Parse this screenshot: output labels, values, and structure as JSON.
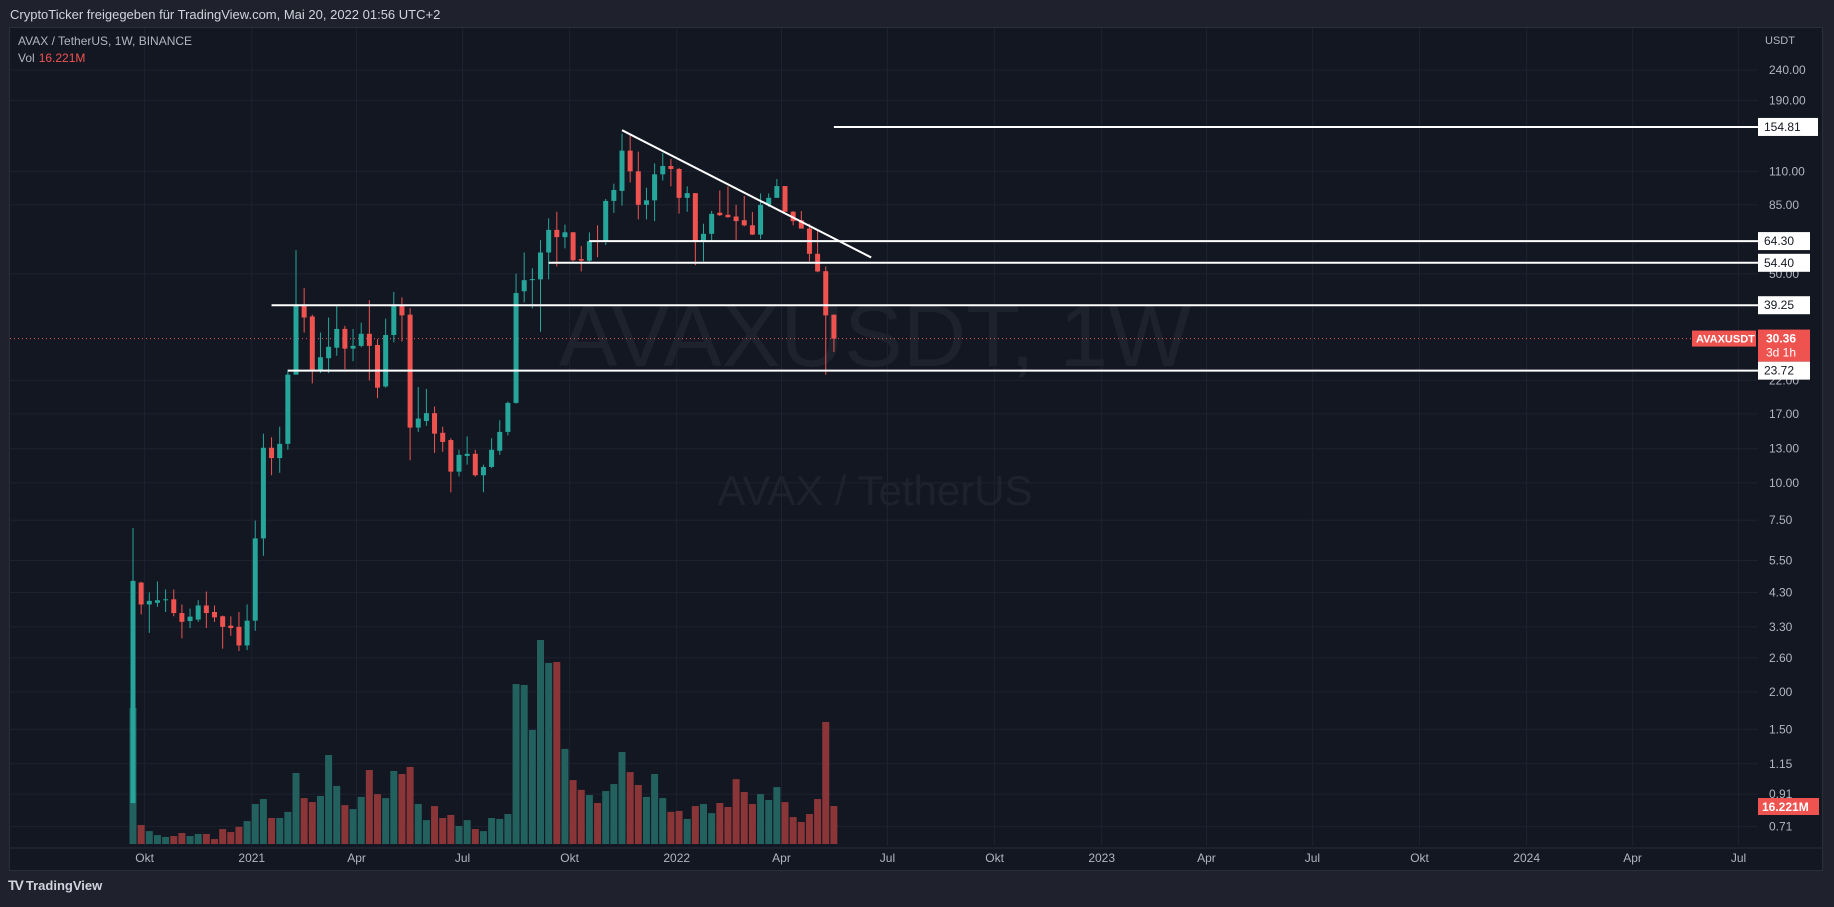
{
  "header": {
    "title": "CryptoTicker freigegeben für TradingView.com, Mai 20, 2022 01:56 UTC+2"
  },
  "legend": {
    "symbol_line": "AVAX / TetherUS, 1W, BINANCE",
    "vol_label": "Vol",
    "vol_value": "16.221M"
  },
  "watermark": {
    "line1": "AVAXUSDT, 1W",
    "line2": "AVAX / TetherUS"
  },
  "footer": {
    "logo_mark": "TV",
    "logo_text": "TradingView"
  },
  "colors": {
    "up": "#26a69a",
    "down": "#ef5350",
    "up_volume": "#22615e",
    "down_volume": "#8a3538",
    "background": "#131722",
    "lines": "#ffffff"
  },
  "chart_data": {
    "type": "candlestick",
    "symbol": "AVAXUSDT",
    "interval": "1W",
    "y_scale": "log",
    "y_unit": "USDT",
    "grid": true,
    "price_ticks": [
      {
        "value": 240,
        "label": "240.00"
      },
      {
        "value": 190,
        "label": "190.00"
      },
      {
        "value": 110,
        "label": "110.00"
      },
      {
        "value": 85,
        "label": "85.00"
      },
      {
        "value": 50,
        "label": "50.00"
      },
      {
        "value": 22,
        "label": "22.00"
      },
      {
        "value": 17,
        "label": "17.00"
      },
      {
        "value": 13,
        "label": "13.00"
      },
      {
        "value": 10,
        "label": "10.00"
      },
      {
        "value": 7.5,
        "label": "7.50"
      },
      {
        "value": 5.5,
        "label": "5.50"
      },
      {
        "value": 4.3,
        "label": "4.30"
      },
      {
        "value": 3.3,
        "label": "3.30"
      },
      {
        "value": 2.6,
        "label": "2.60"
      },
      {
        "value": 2.0,
        "label": "2.00"
      },
      {
        "value": 1.5,
        "label": "1.50"
      },
      {
        "value": 1.15,
        "label": "1.15"
      },
      {
        "value": 0.91,
        "label": "0.91"
      },
      {
        "value": 0.71,
        "label": "0.71"
      }
    ],
    "x_ticks": [
      {
        "date": "2020-10-01",
        "label": "Okt"
      },
      {
        "date": "2021-01-01",
        "label": "2021"
      },
      {
        "date": "2021-04-01",
        "label": "Apr"
      },
      {
        "date": "2021-07-01",
        "label": "Jul"
      },
      {
        "date": "2021-10-01",
        "label": "Okt"
      },
      {
        "date": "2022-01-01",
        "label": "2022"
      },
      {
        "date": "2022-04-01",
        "label": "Apr"
      },
      {
        "date": "2022-07-01",
        "label": "Jul"
      },
      {
        "date": "2022-10-01",
        "label": "Okt"
      },
      {
        "date": "2023-01-01",
        "label": "2023"
      },
      {
        "date": "2023-04-01",
        "label": "Apr"
      },
      {
        "date": "2023-07-01",
        "label": "Jul"
      },
      {
        "date": "2023-10-01",
        "label": "Okt"
      },
      {
        "date": "2024-01-01",
        "label": "2024"
      },
      {
        "date": "2024-04-01",
        "label": "Apr"
      },
      {
        "date": "2024-07-01",
        "label": "Jul"
      }
    ],
    "candle_fields": [
      "date",
      "open",
      "high",
      "low",
      "close",
      "volume_millions"
    ],
    "candles": [
      [
        "2020-09-21",
        0.85,
        7.06,
        0.85,
        4.7,
        58.1
      ],
      [
        "2020-09-28",
        4.64,
        4.67,
        3.63,
        3.92,
        8.1
      ],
      [
        "2020-10-05",
        3.92,
        4.3,
        3.15,
        4.03,
        5.5
      ],
      [
        "2020-10-12",
        3.97,
        4.68,
        3.85,
        4.05,
        3.8
      ],
      [
        "2020-10-19",
        4.05,
        4.4,
        3.7,
        4.08,
        3.0
      ],
      [
        "2020-10-26",
        4.08,
        4.4,
        3.58,
        3.67,
        3.4
      ],
      [
        "2020-11-02",
        3.67,
        3.92,
        3.02,
        3.43,
        4.7
      ],
      [
        "2020-11-09",
        3.45,
        3.8,
        3.27,
        3.57,
        3.4
      ],
      [
        "2020-11-16",
        3.49,
        4.05,
        3.43,
        3.89,
        4.3
      ],
      [
        "2020-11-23",
        3.89,
        4.33,
        3.27,
        3.67,
        4.3
      ],
      [
        "2020-11-30",
        3.7,
        3.89,
        3.43,
        3.55,
        2.1
      ],
      [
        "2020-12-07",
        3.58,
        3.6,
        2.79,
        3.3,
        6.4
      ],
      [
        "2020-12-14",
        3.33,
        3.58,
        3.08,
        3.27,
        5.1
      ],
      [
        "2020-12-21",
        3.3,
        3.7,
        2.74,
        2.86,
        7.3
      ],
      [
        "2020-12-28",
        2.86,
        3.92,
        2.76,
        3.46,
        9.8
      ],
      [
        "2021-01-04",
        3.46,
        7.48,
        3.2,
        6.52,
        17.1
      ],
      [
        "2021-01-11",
        6.52,
        14.6,
        5.7,
        13.1,
        19.2
      ],
      [
        "2021-01-18",
        13.1,
        14.2,
        10.6,
        12.1,
        11.1
      ],
      [
        "2021-01-25",
        12.1,
        15.4,
        10.8,
        13.5,
        11.1
      ],
      [
        "2021-02-01",
        13.5,
        23.9,
        12.9,
        23.0,
        13.7
      ],
      [
        "2021-02-08",
        23.0,
        60.0,
        23.0,
        39.0,
        30.3
      ],
      [
        "2021-02-15",
        39.0,
        44.8,
        31.8,
        35.7,
        19.6
      ],
      [
        "2021-02-22",
        36.0,
        36.5,
        21.5,
        23.7,
        17.9
      ],
      [
        "2021-03-01",
        23.7,
        31.8,
        23.3,
        26.3,
        20.5
      ],
      [
        "2021-03-08",
        26.1,
        35.7,
        23.3,
        28.5,
        38.0
      ],
      [
        "2021-03-15",
        28.3,
        39.0,
        26.6,
        32.7,
        24.8
      ],
      [
        "2021-03-22",
        32.7,
        33.5,
        24.0,
        28.1,
        16.6
      ],
      [
        "2021-03-29",
        28.1,
        32.7,
        25.5,
        28.7,
        14.9
      ],
      [
        "2021-04-05",
        28.7,
        34.3,
        28.4,
        31.5,
        20.1
      ],
      [
        "2021-04-12",
        31.5,
        40.8,
        22.0,
        28.7,
        31.6
      ],
      [
        "2021-04-19",
        28.9,
        30.2,
        19.2,
        20.8,
        21.3
      ],
      [
        "2021-04-26",
        21.0,
        35.4,
        20.8,
        31.2,
        19.6
      ],
      [
        "2021-05-03",
        31.2,
        43.5,
        29.5,
        39.0,
        31.2
      ],
      [
        "2021-05-10",
        39.0,
        41.7,
        29.7,
        36.3,
        29.9
      ],
      [
        "2021-05-17",
        36.5,
        38.4,
        11.9,
        15.3,
        32.9
      ],
      [
        "2021-05-24",
        15.3,
        20.9,
        14.8,
        16.4,
        17.1
      ],
      [
        "2021-05-31",
        16.1,
        20.6,
        15.5,
        17.1,
        10.2
      ],
      [
        "2021-06-07",
        17.1,
        18.0,
        12.6,
        14.6,
        16.2
      ],
      [
        "2021-06-14",
        14.7,
        15.4,
        12.7,
        13.7,
        11.1
      ],
      [
        "2021-06-21",
        13.9,
        14.1,
        9.3,
        10.9,
        12.4
      ],
      [
        "2021-06-28",
        10.9,
        12.9,
        10.5,
        12.4,
        7.7
      ],
      [
        "2021-07-05",
        12.3,
        14.3,
        11.5,
        12.5,
        10.2
      ],
      [
        "2021-07-12",
        12.5,
        12.9,
        10.5,
        10.6,
        6.4
      ],
      [
        "2021-07-19",
        10.6,
        11.5,
        9.3,
        11.3,
        5.5
      ],
      [
        "2021-07-26",
        11.3,
        14.1,
        11.2,
        12.9,
        11.1
      ],
      [
        "2021-08-02",
        12.8,
        16.2,
        12.4,
        14.8,
        10.7
      ],
      [
        "2021-08-09",
        14.8,
        18.7,
        14.4,
        18.5,
        12.8
      ],
      [
        "2021-08-16",
        18.5,
        50.0,
        18.4,
        43.1,
        68.3
      ],
      [
        "2021-08-23",
        43.7,
        58.9,
        40.1,
        47.6,
        67.9
      ],
      [
        "2021-08-30",
        47.6,
        52.2,
        38.3,
        48.0,
        48.7
      ],
      [
        "2021-09-06",
        47.9,
        64.8,
        32.0,
        58.9,
        87.1
      ],
      [
        "2021-09-13",
        58.9,
        76.6,
        47.9,
        70.1,
        77.3
      ],
      [
        "2021-09-20",
        70.1,
        80.6,
        52.9,
        66.3,
        77.7
      ],
      [
        "2021-09-27",
        66.3,
        73.0,
        60.8,
        68.8,
        40.6
      ],
      [
        "2021-10-04",
        68.8,
        69.0,
        55.0,
        55.5,
        27.3
      ],
      [
        "2021-10-11",
        56.0,
        61.9,
        50.9,
        55.3,
        23.1
      ],
      [
        "2021-10-18",
        55.3,
        68.8,
        54.6,
        64.3,
        20.9
      ],
      [
        "2021-10-25",
        64.5,
        72.6,
        56.8,
        63.9,
        17.5
      ],
      [
        "2021-11-01",
        64.3,
        88.9,
        62.4,
        87.6,
        22.6
      ],
      [
        "2021-11-08",
        87.6,
        100,
        79.9,
        95.3,
        25.6
      ],
      [
        "2021-11-15",
        94.6,
        147,
        84.5,
        129,
        39.3
      ],
      [
        "2021-11-22",
        129,
        146,
        101,
        110,
        30.7
      ],
      [
        "2021-11-29",
        110,
        128,
        76,
        85,
        25.2
      ],
      [
        "2021-12-06",
        85,
        97,
        76,
        88,
        20.1
      ],
      [
        "2021-12-13",
        88,
        117,
        75,
        107.5,
        29.9
      ],
      [
        "2021-12-20",
        107.5,
        126.8,
        102.5,
        114.6,
        19.6
      ],
      [
        "2021-12-27",
        114.6,
        121,
        98,
        112,
        13.7
      ],
      [
        "2022-01-03",
        112,
        113,
        79.5,
        89.7,
        14.1
      ],
      [
        "2022-01-10",
        89.7,
        98,
        80.6,
        93,
        10.7
      ],
      [
        "2022-01-17",
        93,
        93,
        53.4,
        64.6,
        16.2
      ],
      [
        "2022-01-24",
        64.6,
        73.5,
        55,
        68,
        17.1
      ],
      [
        "2022-01-31",
        68,
        81.1,
        64.6,
        79.3,
        13.2
      ],
      [
        "2022-02-07",
        80,
        95,
        78,
        78.5,
        17.5
      ],
      [
        "2022-02-14",
        78.7,
        98,
        77,
        77.3,
        15.8
      ],
      [
        "2022-02-21",
        77.7,
        85,
        64.6,
        75,
        27.7
      ],
      [
        "2022-02-28",
        75.5,
        91,
        72,
        72.6,
        22.2
      ],
      [
        "2022-03-07",
        72.6,
        80.5,
        67.4,
        67.6,
        17.1
      ],
      [
        "2022-03-14",
        67.6,
        92.8,
        65.3,
        85,
        21.3
      ],
      [
        "2022-03-21",
        85,
        92.8,
        83.6,
        89.7,
        18.8
      ],
      [
        "2022-03-28",
        89.7,
        103.7,
        89.7,
        98.2,
        24.3
      ],
      [
        "2022-04-04",
        98.2,
        98.2,
        80.6,
        80.6,
        17.9
      ],
      [
        "2022-04-11",
        80.6,
        81,
        72.6,
        75,
        11.5
      ],
      [
        "2022-04-18",
        75.5,
        81,
        70.8,
        70.8,
        9.4
      ],
      [
        "2022-04-25",
        70.8,
        73.5,
        55,
        58.3,
        12.8
      ],
      [
        "2022-05-02",
        58.3,
        69.5,
        50.6,
        50.9,
        19.2
      ],
      [
        "2022-05-09",
        51,
        52.9,
        23,
        36.3,
        52.1
      ],
      [
        "2022-05-16",
        36.5,
        36.5,
        27.4,
        30.36,
        16.221
      ]
    ],
    "horizontal_lines": [
      {
        "price": 154.81,
        "from": "2022-05-16",
        "label": "154.81"
      },
      {
        "price": 64.3,
        "from": "2021-10-18",
        "label": "64.30"
      },
      {
        "price": 54.4,
        "from": "2021-09-13",
        "label": "54.40"
      },
      {
        "price": 39.25,
        "from": "2021-01-18",
        "label": "39.25"
      },
      {
        "price": 23.72,
        "from": "2021-02-01",
        "label": "23.72"
      }
    ],
    "trendline": {
      "from": {
        "date": "2021-11-15",
        "price": 151
      },
      "to": {
        "date": "2022-06-17",
        "price": 56.7
      }
    },
    "last_price": {
      "price": 30.36,
      "label": "30.36",
      "countdown": "3d 1h",
      "symbol_tag": "AVAXUSDT"
    },
    "last_volume": {
      "label": "16.221M"
    }
  }
}
